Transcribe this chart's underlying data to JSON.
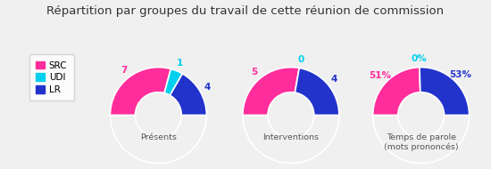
{
  "title": "Répartition par groupes du travail de cette réunion de commission",
  "title_fontsize": 9.5,
  "background_color": "#f0f0f0",
  "legend_labels": [
    "SRC",
    "UDI",
    "LR"
  ],
  "colors": [
    "#FF2D9B",
    "#00CFEE",
    "#2233CC"
  ],
  "charts": [
    {
      "subtitle": "Présents",
      "values": [
        7,
        1,
        4
      ],
      "labels": [
        "7",
        "1",
        "4"
      ],
      "label_colors": [
        "#FF2D9B",
        "#00CFEE",
        "#2233CC"
      ]
    },
    {
      "subtitle": "Interventions",
      "values": [
        5,
        0,
        4
      ],
      "labels": [
        "5",
        "0",
        "4"
      ],
      "label_colors": [
        "#FF2D9B",
        "#00CFEE",
        "#2233CC"
      ]
    },
    {
      "subtitle": "Temps de parole\n(mots prononcés)",
      "values": [
        51,
        0,
        53
      ],
      "labels": [
        "51%",
        "0%",
        "53%"
      ],
      "label_colors": [
        "#FF2D9B",
        "#00CFEE",
        "#2233CC"
      ]
    }
  ]
}
